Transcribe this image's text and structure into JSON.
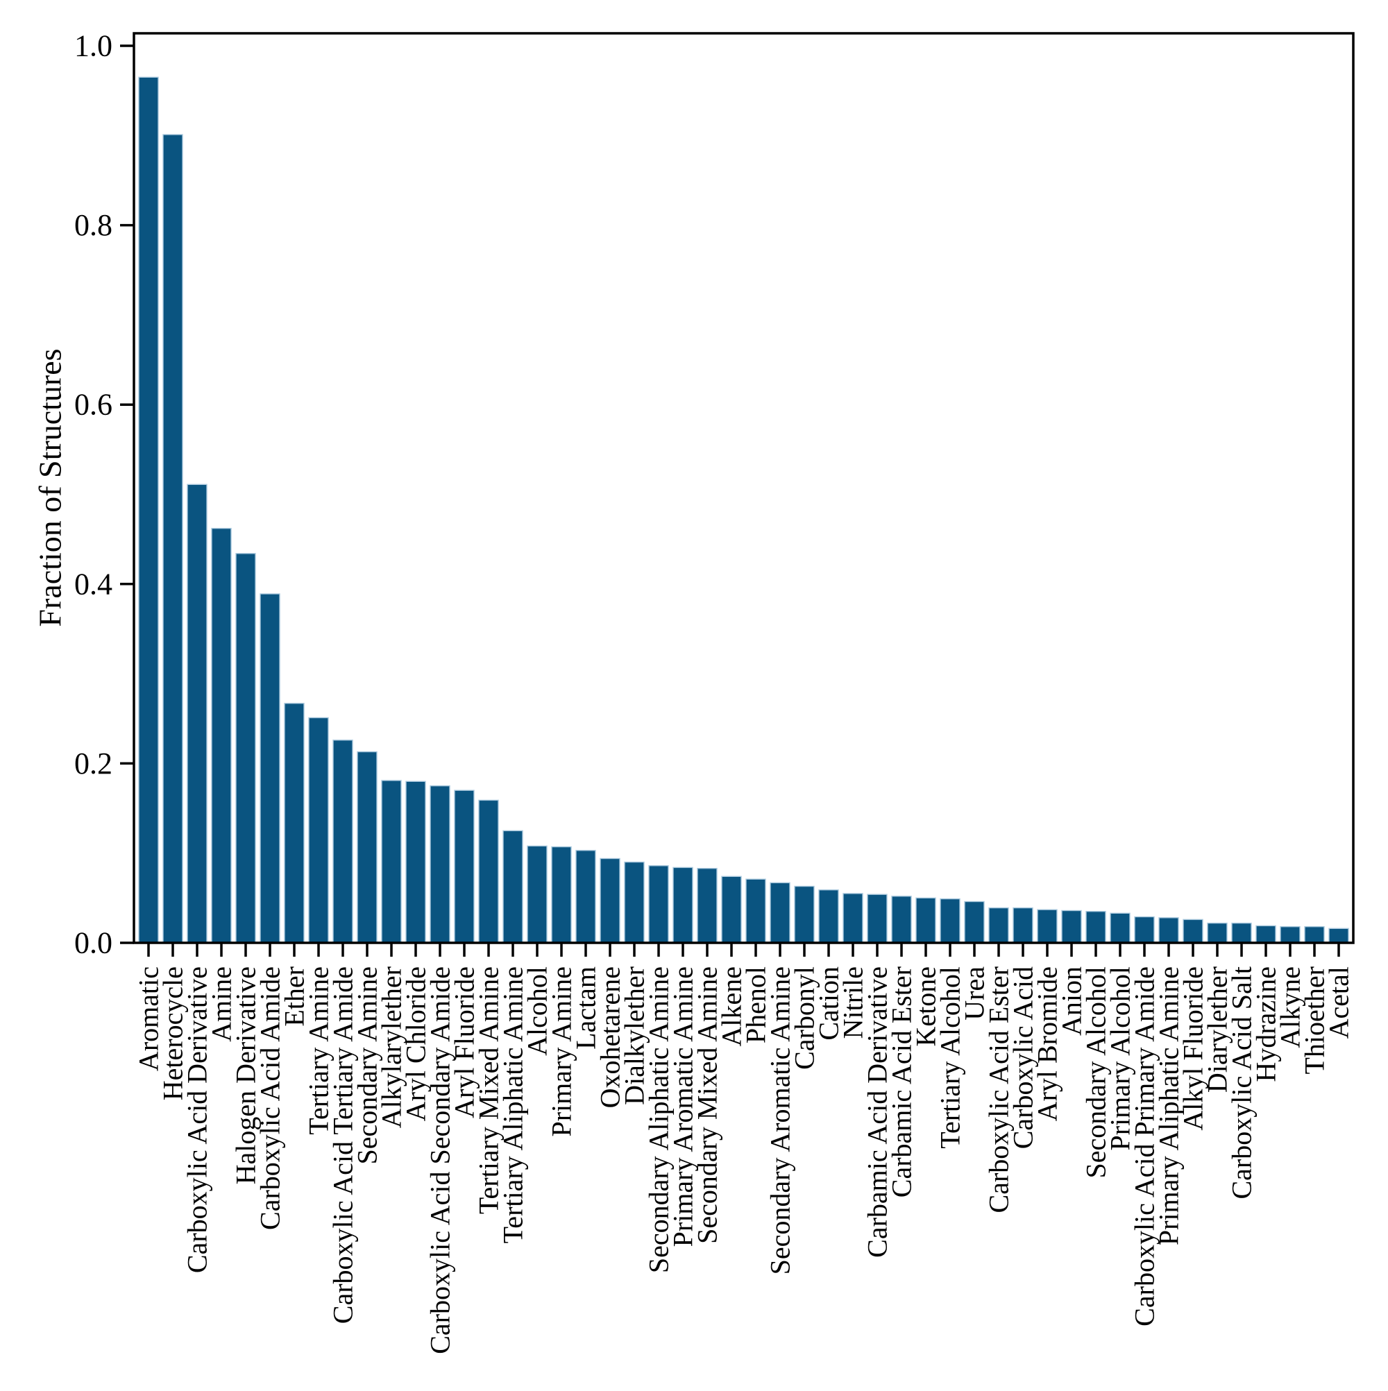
{
  "figure": {
    "background": "#ffffff",
    "bar_color": "#0a5480",
    "bar_edge_color": "#a9c8dd",
    "axis_color": "#000000",
    "text_color": "#000000"
  },
  "chart_data": {
    "type": "bar",
    "title": "",
    "xlabel": "",
    "ylabel": "Fraction of Structures",
    "ylim": [
      0.0,
      1.0
    ],
    "yticks": [
      "0.0",
      "0.2",
      "0.4",
      "0.6",
      "0.8",
      "1.0"
    ],
    "grid": false,
    "legend_position": "none",
    "x_tick_label_rotation_deg": 90,
    "categories": [
      "Aromatic",
      "Heterocycle",
      "Carboxylic Acid Derivative",
      "Amine",
      "Halogen Derivative",
      "Carboxylic Acid Amide",
      "Ether",
      "Tertiary Amine",
      "Carboxylic Acid Tertiary Amide",
      "Secondary Amine",
      "Alkylarylether",
      "Aryl Chloride",
      "Carboxylic Acid Secondary Amide",
      "Aryl Fluoride",
      "Tertiary Mixed Amine",
      "Tertiary Aliphatic Amine",
      "Alcohol",
      "Primary Amine",
      "Lactam",
      "Oxohetarene",
      "Dialkylether",
      "Secondary Aliphatic Amine",
      "Primary Aromatic Amine",
      "Secondary Mixed Amine",
      "Alkene",
      "Phenol",
      "Secondary Aromatic Amine",
      "Carbonyl",
      "Cation",
      "Nitrile",
      "Carbamic Acid Derivative",
      "Carbamic Acid Ester",
      "Ketone",
      "Tertiary Alcohol",
      "Urea",
      "Carboxylic Acid Ester",
      "Carboxylic Acid",
      "Aryl Bromide",
      "Anion",
      "Secondary Alcohol",
      "Primary Alcohol",
      "Carboxylic Acid Primary Amide",
      "Primary Aliphatic Amine",
      "Alkyl Fluoride",
      "Diarylether",
      "Carboxylic Acid Salt",
      "Hydrazine",
      "Alkyne",
      "Thioether",
      "Acetal"
    ],
    "values": [
      0.965,
      0.901,
      0.511,
      0.462,
      0.434,
      0.389,
      0.267,
      0.251,
      0.226,
      0.213,
      0.181,
      0.18,
      0.175,
      0.17,
      0.159,
      0.125,
      0.108,
      0.107,
      0.103,
      0.094,
      0.09,
      0.086,
      0.084,
      0.083,
      0.074,
      0.071,
      0.067,
      0.063,
      0.059,
      0.055,
      0.054,
      0.052,
      0.05,
      0.049,
      0.046,
      0.039,
      0.039,
      0.037,
      0.036,
      0.035,
      0.033,
      0.029,
      0.028,
      0.026,
      0.022,
      0.022,
      0.019,
      0.018,
      0.018,
      0.016
    ]
  }
}
